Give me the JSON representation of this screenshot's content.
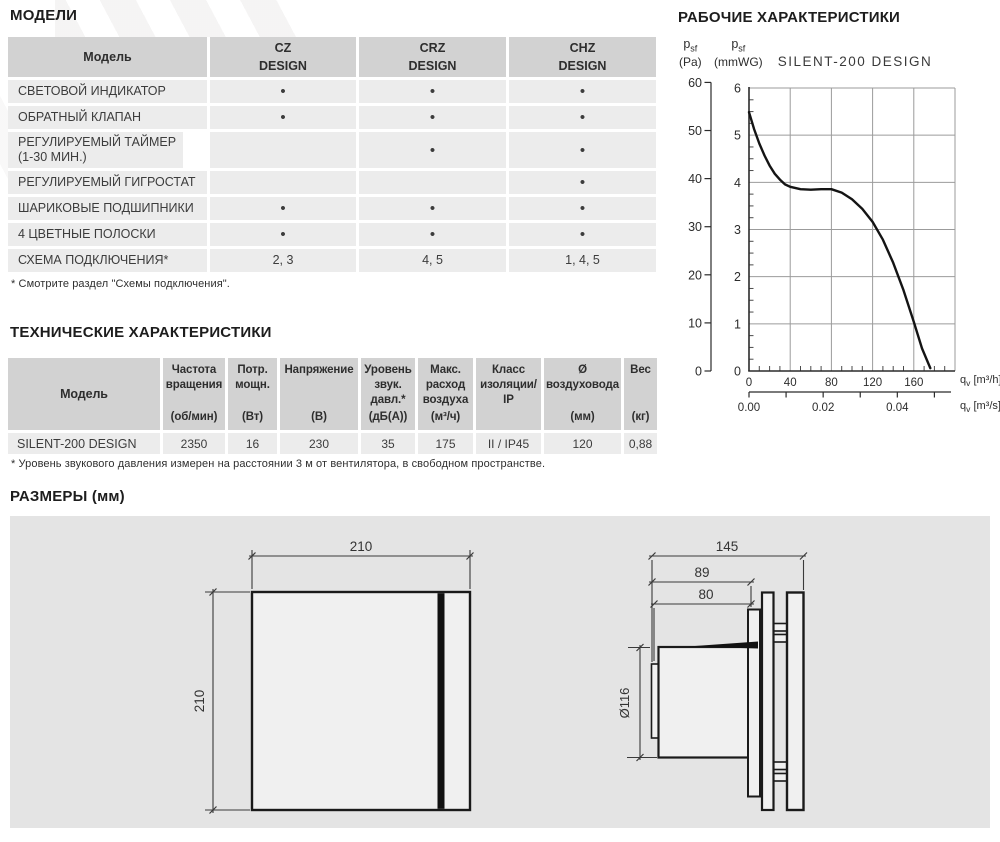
{
  "models_section": {
    "title": "МОДЕЛИ",
    "table": {
      "model_header": "Модель",
      "product_columns": [
        {
          "line1": "CZ",
          "line2": "DESIGN"
        },
        {
          "line1": "CRZ",
          "line2": "DESIGN"
        },
        {
          "line1": "CHZ",
          "line2": "DESIGN"
        }
      ],
      "rows": [
        {
          "label": "СВЕТОВОЙ ИНДИКАТОР",
          "values": [
            "•",
            "•",
            "•"
          ]
        },
        {
          "label": "ОБРАТНЫЙ КЛАПАН",
          "values": [
            "•",
            "•",
            "•"
          ]
        },
        {
          "label": "РЕГУЛИРУЕМЫЙ ТАЙМЕР (1-30 МИН.)",
          "values": [
            "",
            "•",
            "•"
          ]
        },
        {
          "label": "РЕГУЛИРУЕМЫЙ ГИГРОСТАТ",
          "values": [
            "",
            "",
            "•"
          ]
        },
        {
          "label": "ШАРИКОВЫЕ ПОДШИПНИКИ",
          "values": [
            "•",
            "•",
            "•"
          ]
        },
        {
          "label": "4 ЦВЕТНЫЕ ПОЛОСКИ",
          "values": [
            "•",
            "•",
            "•"
          ]
        },
        {
          "label": "СХЕМА ПОДКЛЮЧЕНИЯ*",
          "values": [
            "2, 3",
            "4, 5",
            "1, 4, 5"
          ]
        }
      ]
    },
    "footnote": "* Смотрите раздел \"Схемы подключения\"."
  },
  "performance_section": {
    "title": "РАБОЧИЕ ХАРАКТЕРИСТИКИ"
  },
  "chart_data": {
    "type": "line",
    "title": "SILENT-200 DESIGN",
    "grid": true,
    "pa_per_mmwg": 9.80665,
    "y_axis_pa": {
      "sym": "p",
      "sub": "sf",
      "unit": "(Pa)",
      "min": 0,
      "max": 60,
      "ticks": [
        0,
        10,
        20,
        30,
        40,
        50,
        60
      ]
    },
    "y_axis_mmwg": {
      "sym": "p",
      "sub": "sf",
      "unit": "(mmWG)",
      "min": 0,
      "max": 6,
      "ticks": [
        0,
        1,
        2,
        3,
        4,
        5,
        6
      ]
    },
    "x_axis_m3h": {
      "sym": "q",
      "sub": "v",
      "unit": "[m³/h]",
      "min": 0,
      "max": 200,
      "ticks": [
        0,
        40,
        80,
        120,
        160
      ]
    },
    "x_axis_m3s": {
      "sym": "q",
      "sub": "v",
      "unit": "[m³/s]",
      "ticks": [
        0,
        0.01,
        0.02,
        0.03,
        0.04,
        0.05
      ],
      "tick_labels": [
        "0.00",
        "",
        "0.02",
        "",
        "0.04",
        ""
      ]
    },
    "series": [
      {
        "name": "SILENT-200 DESIGN",
        "points_m3h_pa": [
          [
            0,
            53.8
          ],
          [
            5,
            50.3
          ],
          [
            10,
            47.3
          ],
          [
            15,
            44.8
          ],
          [
            20,
            42.7
          ],
          [
            25,
            41.0
          ],
          [
            30,
            39.8
          ],
          [
            35,
            38.8
          ],
          [
            40,
            38.3
          ],
          [
            50,
            37.8
          ],
          [
            60,
            37.7
          ],
          [
            70,
            37.8
          ],
          [
            80,
            37.8
          ],
          [
            90,
            37.1
          ],
          [
            100,
            35.7
          ],
          [
            110,
            33.7
          ],
          [
            120,
            31.0
          ],
          [
            130,
            27.3
          ],
          [
            140,
            22.5
          ],
          [
            150,
            16.8
          ],
          [
            160,
            10.2
          ],
          [
            168,
            4.7
          ],
          [
            176,
            0.6
          ]
        ]
      }
    ]
  },
  "tech_section": {
    "title": "ТЕХНИЧЕСКИЕ ХАРАКТЕРИСТИКИ",
    "columns": [
      {
        "name": "Модель",
        "unit": ""
      },
      {
        "name": "Частота вращения",
        "unit": "(об/мин)"
      },
      {
        "name": "Потр. мощн.",
        "unit": "(Вт)"
      },
      {
        "name": "Напряжение",
        "unit": "(В)"
      },
      {
        "name": "Уровень звук. давл.*",
        "unit": "(дБ(А))"
      },
      {
        "name": "Макс. расход воздуха",
        "unit": "(м³/ч)"
      },
      {
        "name": "Класс изоляции/ IP",
        "unit": ""
      },
      {
        "name": "Ø воздуховода",
        "unit": "(мм)"
      },
      {
        "name": "Вес",
        "unit": "(кг)"
      }
    ],
    "row": {
      "model": "SILENT-200 DESIGN",
      "values": [
        "2350",
        "16",
        "230",
        "35",
        "175",
        "II / IP45",
        "120",
        "0,88"
      ]
    },
    "footnote": "* Уровень звукового давления измерен на расстоянии 3 м от вентилятора, в свободном пространстве."
  },
  "dimensions_section": {
    "title": "РАЗМЕРЫ (мм)",
    "front_view": {
      "width": "210",
      "height": "210"
    },
    "side_view": {
      "total_depth": "145",
      "body_depth": "89",
      "duct_depth": "80",
      "duct_diameter": "Ø116"
    }
  }
}
